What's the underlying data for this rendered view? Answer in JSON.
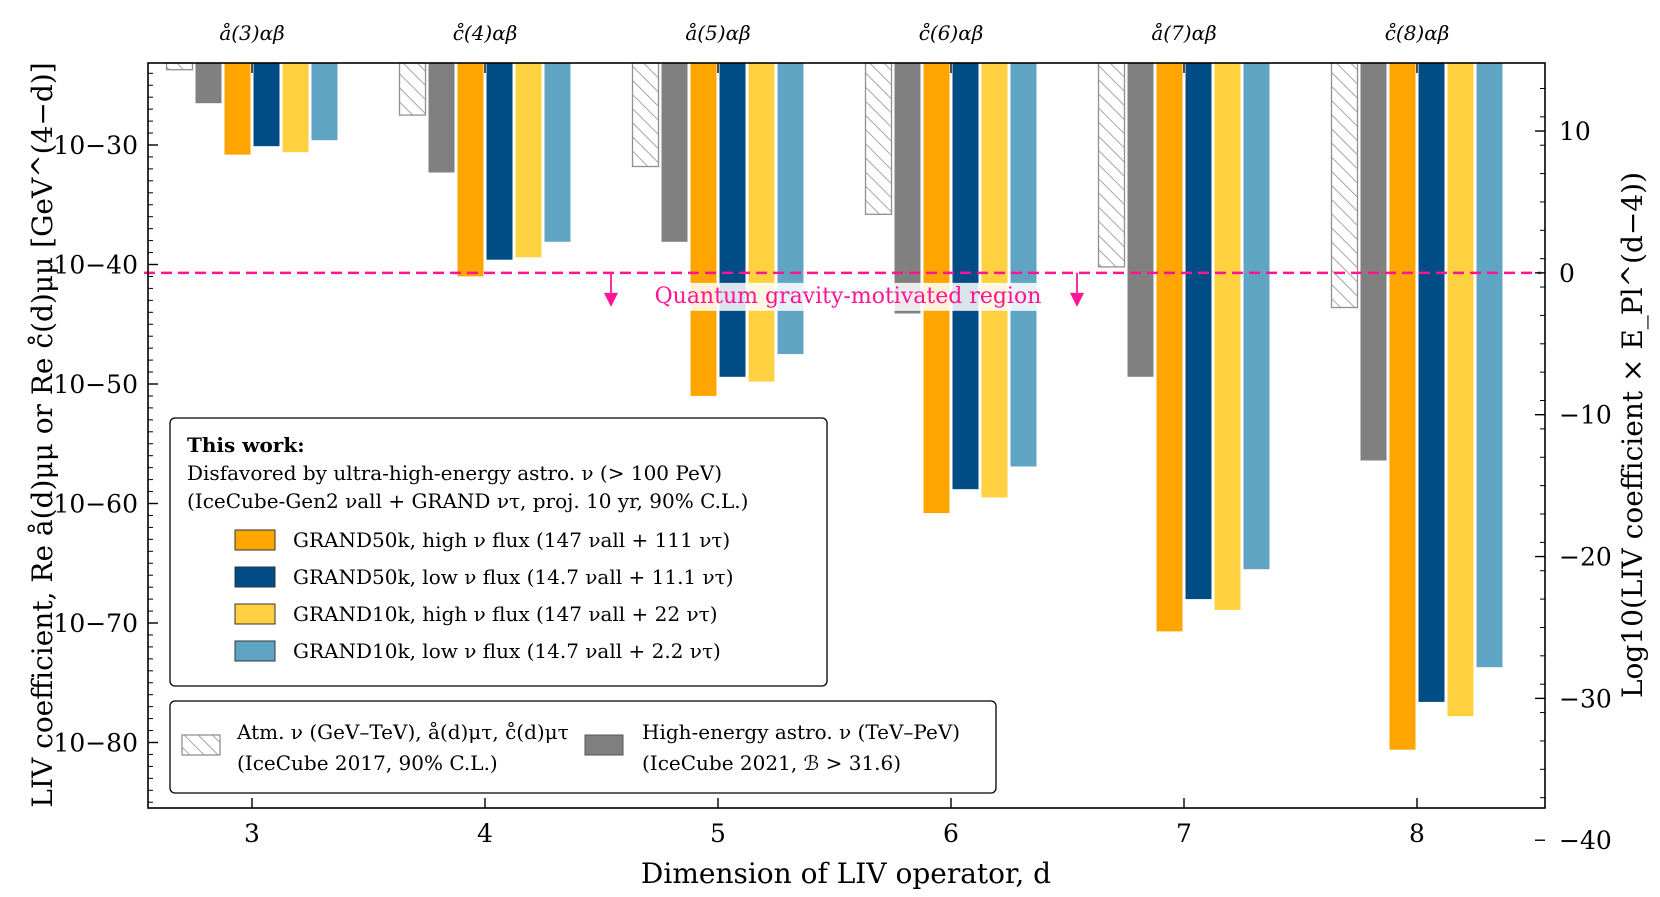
{
  "chart_data": {
    "type": "bar",
    "title": "",
    "xlabel": "Dimension of LIV operator, d",
    "ylabel": "LIV coefficient, Re å(d)μμ or Re c̊(d)μμ [GeV^(4−d)]",
    "ylabel_right": "Log10(LIV coefficient × E_Pl^(d−4))",
    "categories": [
      "3",
      "4",
      "5",
      "6",
      "7",
      "8"
    ],
    "operator_labels": [
      "å(3)αβ",
      "c̊(4)αβ",
      "å(5)αβ",
      "c̊(6)αβ",
      "å(7)αβ",
      "c̊(8)αβ"
    ],
    "y_scale": "log10",
    "ylim_log10": [
      -85,
      -23
    ],
    "yticks_log10": [
      -80,
      -70,
      -60,
      -50,
      -40,
      -30
    ],
    "ytick_labels": [
      "10−80",
      "10−70",
      "10−60",
      "10−50",
      "10−40",
      "10−30"
    ],
    "right_yticks": [
      -40,
      -30,
      -20,
      -10,
      0,
      10
    ],
    "planck_energy_log10_GeV": 19.087,
    "quantum_gravity_label": "Quantum gravity-motivated region",
    "series": [
      {
        "name": "Atm. ν (GeV–TeV)",
        "color": "#ffffff",
        "hatch": true,
        "values_log10": [
          -23.7,
          -27.5,
          -31.8,
          -35.8,
          -40.2,
          -43.6
        ]
      },
      {
        "name": "High-energy astro. ν (TeV–PeV)",
        "color": "#808080",
        "values_log10": [
          -26.5,
          -32.3,
          -38.1,
          -44.1,
          -49.4,
          -56.4
        ]
      },
      {
        "name": "GRAND50k, high ν flux",
        "color": "#ffa500",
        "values_log10": [
          -30.8,
          -41.0,
          -51.0,
          -60.8,
          -70.7,
          -80.6
        ]
      },
      {
        "name": "GRAND50k, low ν flux",
        "color": "#004c84",
        "values_log10": [
          -30.1,
          -39.6,
          -49.4,
          -58.8,
          -68.0,
          -76.6
        ]
      },
      {
        "name": "GRAND10k, high ν flux",
        "color": "#ffd040",
        "values_log10": [
          -30.6,
          -39.4,
          -49.8,
          -59.5,
          -68.9,
          -77.8
        ]
      },
      {
        "name": "GRAND10k, low ν flux",
        "color": "#60a4c4",
        "values_log10": [
          -29.6,
          -38.1,
          -47.5,
          -56.9,
          -65.5,
          -73.7
        ]
      }
    ]
  },
  "legend_main": {
    "heading": "This work:",
    "line1": "Disfavored by ultra-high-energy astro. ν (> 100 PeV)",
    "line2": "(IceCube-Gen2 νall + GRAND ντ, proj. 10 yr, 90% C.L.)",
    "entries": [
      {
        "label": "GRAND50k, high ν flux (147 νall + 111 ντ)",
        "color": "#ffa500"
      },
      {
        "label": "GRAND50k, low ν flux  (14.7 νall + 11.1 ντ)",
        "color": "#004c84"
      },
      {
        "label": "GRAND10k, high ν flux (147 νall + 22 ντ)",
        "color": "#ffd040"
      },
      {
        "label": "GRAND10k, low ν flux  (14.7 νall + 2.2 ντ)",
        "color": "#60a4c4"
      }
    ]
  },
  "legend_bottom": {
    "atm_line1": "Atm. ν (GeV–TeV), å(d)μτ, c̊(d)μτ",
    "atm_line2": "(IceCube 2017, 90% C.L.)",
    "he_line1": "High-energy astro. ν (TeV–PeV)",
    "he_line2": "(IceCube 2021, ℬ > 31.6)"
  },
  "colors": {
    "qg_line": "#ff1493",
    "hatch_stroke": "#909090",
    "frame": "#000000"
  }
}
